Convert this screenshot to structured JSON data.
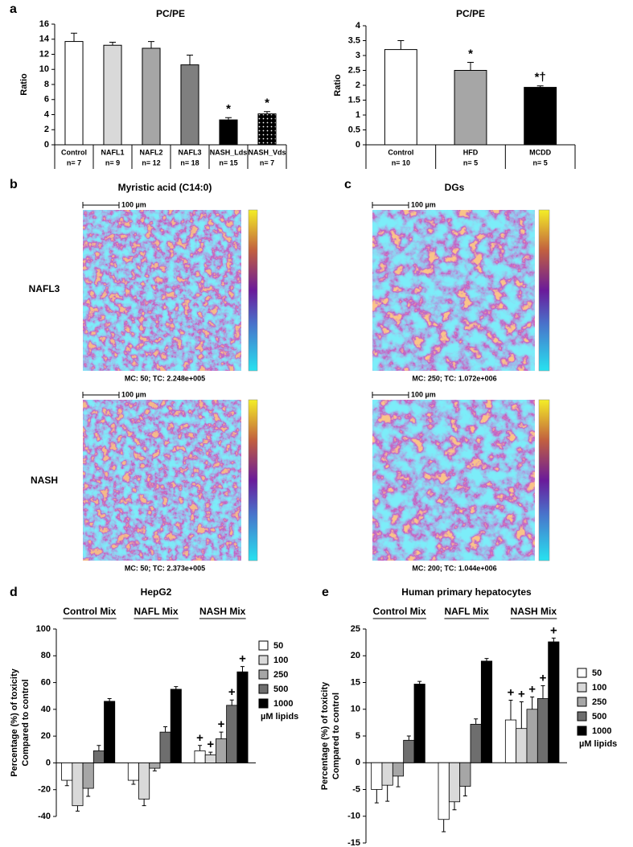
{
  "chart_data": [
    {
      "type": "bar",
      "title": "PC/PE",
      "ylabel": "Ratio",
      "categories": [
        "Control",
        "NAFL1",
        "NAFL2",
        "NAFL3",
        "NASH_Lds",
        "NASH_Vds"
      ],
      "n_labels": [
        "n= 7",
        "n= 9",
        "n= 12",
        "n= 18",
        "n= 15",
        "n= 7"
      ],
      "values": [
        13.7,
        13.2,
        12.8,
        10.6,
        3.3,
        4.1
      ],
      "errors": [
        1.1,
        0.4,
        0.9,
        1.3,
        0.3,
        0.3
      ],
      "annotations": [
        null,
        null,
        null,
        null,
        "*",
        "*"
      ],
      "colors": [
        "#ffffff",
        "#d9d9d9",
        "#a6a6a6",
        "#7f7f7f",
        "#000000",
        "#000000"
      ],
      "patterns": [
        null,
        null,
        null,
        null,
        null,
        "dots"
      ],
      "ylim": [
        0,
        16
      ],
      "yticks": [
        0,
        2,
        4,
        6,
        8,
        10,
        12,
        14,
        16
      ]
    },
    {
      "type": "bar",
      "title": "PC/PE",
      "ylabel": "Ratio",
      "categories": [
        "Control",
        "HFD",
        "MCDD"
      ],
      "n_labels": [
        "n= 10",
        "n= 5",
        "n= 5"
      ],
      "values": [
        3.2,
        2.5,
        1.93
      ],
      "errors": [
        0.3,
        0.27,
        0.05
      ],
      "annotations": [
        null,
        "*",
        "*†"
      ],
      "colors": [
        "#ffffff",
        "#a6a6a6",
        "#000000"
      ],
      "patterns": [
        null,
        null,
        null
      ],
      "ylim": [
        0,
        4
      ],
      "yticks": [
        0,
        0.5,
        1,
        1.5,
        2,
        2.5,
        3,
        3.5,
        4
      ]
    },
    {
      "type": "bar",
      "title": "HepG2",
      "ylabel": [
        "Percentage (%) of toxicity",
        "Compared to control"
      ],
      "categories": [
        "Control Mix",
        "NAFL Mix",
        "NASH Mix"
      ],
      "series": [
        {
          "name": "50",
          "color": "#ffffff",
          "values": [
            -13,
            -13,
            9
          ],
          "errors": [
            4,
            3,
            4
          ],
          "annotations": [
            null,
            null,
            "+"
          ]
        },
        {
          "name": "100",
          "color": "#d9d9d9",
          "values": [
            -32,
            -27,
            6
          ],
          "errors": [
            4,
            5,
            2
          ],
          "annotations": [
            null,
            null,
            "+"
          ]
        },
        {
          "name": "250",
          "color": "#a6a6a6",
          "values": [
            -19,
            -4,
            18
          ],
          "errors": [
            6,
            2,
            5
          ],
          "annotations": [
            null,
            null,
            "+"
          ]
        },
        {
          "name": "500",
          "color": "#6e6e6e",
          "values": [
            9,
            23,
            43
          ],
          "errors": [
            4,
            4,
            4
          ],
          "annotations": [
            null,
            null,
            "+"
          ]
        },
        {
          "name": "1000",
          "color": "#000000",
          "values": [
            46,
            55,
            68
          ],
          "errors": [
            2,
            2,
            4
          ],
          "annotations": [
            null,
            null,
            "+"
          ]
        }
      ],
      "legend_note": "µM lipids",
      "ylim": [
        -40,
        100
      ],
      "yticks": [
        -40,
        -20,
        0,
        20,
        40,
        60,
        80,
        100
      ]
    },
    {
      "type": "bar",
      "title": "Human primary hepatocytes",
      "ylabel": [
        "Percentage (%) of toxicity",
        "Compared to control"
      ],
      "categories": [
        "Control Mix",
        "NAFL Mix",
        "NASH Mix"
      ],
      "series": [
        {
          "name": "50",
          "color": "#ffffff",
          "values": [
            -5,
            -10.6,
            8
          ],
          "errors": [
            2.5,
            2.3,
            3.7
          ],
          "annotations": [
            null,
            null,
            "+"
          ]
        },
        {
          "name": "100",
          "color": "#d9d9d9",
          "values": [
            -4.2,
            -7.3,
            6.4
          ],
          "errors": [
            3,
            1.5,
            5
          ],
          "annotations": [
            null,
            null,
            "+"
          ]
        },
        {
          "name": "250",
          "color": "#a6a6a6",
          "values": [
            -2.5,
            -4.4,
            10
          ],
          "errors": [
            2,
            1.8,
            2.3
          ],
          "annotations": [
            null,
            null,
            "+"
          ]
        },
        {
          "name": "500",
          "color": "#6e6e6e",
          "values": [
            4.2,
            7.2,
            12
          ],
          "errors": [
            0.8,
            1,
            2.4
          ],
          "annotations": [
            null,
            null,
            "+"
          ]
        },
        {
          "name": "1000",
          "color": "#000000",
          "values": [
            14.7,
            19,
            22.6
          ],
          "errors": [
            0.5,
            0.5,
            0.7
          ],
          "annotations": [
            null,
            null,
            "+"
          ]
        }
      ],
      "legend_note": "µM lipids",
      "ylim": [
        -15,
        25
      ],
      "yticks": [
        -15,
        -10,
        -5,
        0,
        5,
        10,
        15,
        20,
        25
      ]
    }
  ],
  "panel_letters": [
    "a",
    "b",
    "c",
    "d",
    "e"
  ],
  "row_labels": [
    "NAFL3",
    "NASH"
  ],
  "image_panels": [
    {
      "title": "Myristic acid (C14:0)",
      "scale_label": "100 µm",
      "captions": [
        "MC: 50; TC: 2.248e+005",
        "MC: 50; TC: 2.373e+005"
      ]
    },
    {
      "title": "DGs",
      "scale_label": "100 µm",
      "captions": [
        "MC: 250; TC: 1.072e+006",
        "MC: 200; TC: 1.044e+006"
      ]
    }
  ]
}
